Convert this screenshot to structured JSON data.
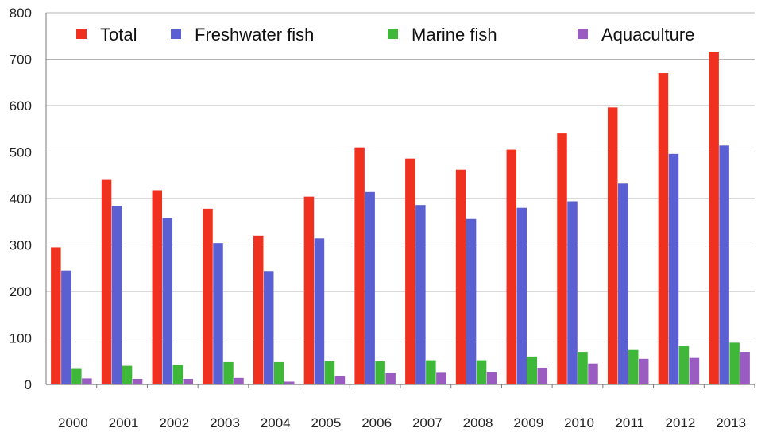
{
  "chart_data": {
    "type": "bar",
    "title": "",
    "xlabel": "",
    "ylabel": "",
    "ylim": [
      0,
      800
    ],
    "yticks": [
      0,
      100,
      200,
      300,
      400,
      500,
      600,
      700,
      800
    ],
    "grid": true,
    "legend_position": "top",
    "categories": [
      "2000",
      "2001",
      "2002",
      "2003",
      "2004",
      "2005",
      "2006",
      "2007",
      "2008",
      "2009",
      "2010",
      "2011",
      "2012",
      "2013"
    ],
    "series": [
      {
        "name": "Total",
        "color": "#f0311f",
        "values": [
          295,
          440,
          418,
          378,
          320,
          404,
          510,
          486,
          462,
          505,
          540,
          596,
          670,
          716
        ]
      },
      {
        "name": "Freshwater fish",
        "color": "#5a5fd2",
        "values": [
          245,
          384,
          358,
          304,
          244,
          314,
          414,
          386,
          356,
          380,
          394,
          432,
          496,
          514
        ]
      },
      {
        "name": "Marine fish",
        "color": "#3fb83a",
        "values": [
          35,
          40,
          42,
          48,
          48,
          50,
          50,
          52,
          52,
          60,
          70,
          74,
          82,
          90
        ]
      },
      {
        "name": "Aquaculture",
        "color": "#9a5cc0",
        "values": [
          13,
          12,
          12,
          14,
          6,
          18,
          24,
          25,
          26,
          36,
          45,
          55,
          57,
          70
        ]
      }
    ]
  }
}
